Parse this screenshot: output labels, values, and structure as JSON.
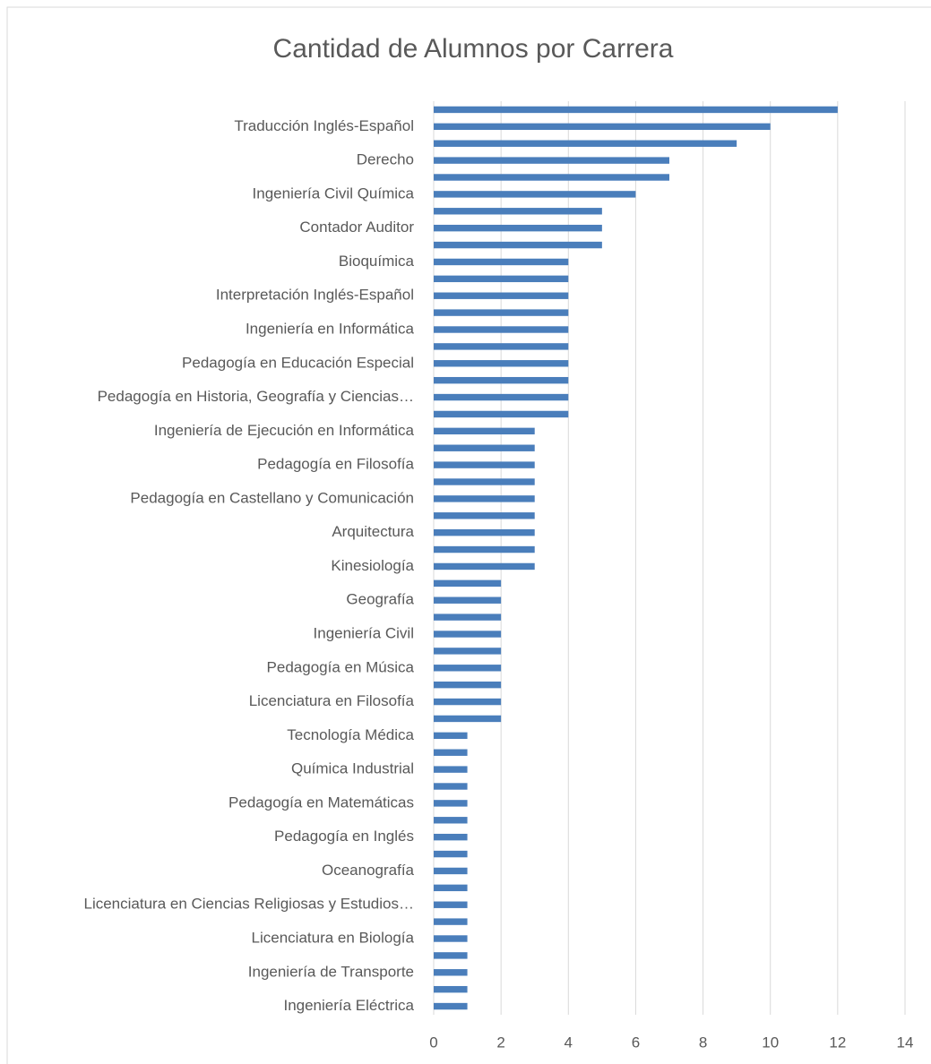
{
  "chart_data": {
    "type": "barh",
    "title": "Cantidad de Alumnos por Carrera",
    "categories": [
      null,
      "Traducción Inglés-Español",
      null,
      "Derecho",
      null,
      "Ingeniería Civil Química",
      null,
      "Contador Auditor",
      null,
      "Bioquímica",
      null,
      "Interpretación Inglés-Español",
      null,
      "Ingeniería en Informática",
      null,
      "Pedagogía en Educación Especial",
      null,
      "Pedagogía en Historia, Geografía y Ciencias…",
      null,
      "Ingeniería de Ejecución en Informática",
      null,
      "Pedagogía en Filosofía",
      null,
      "Pedagogía en Castellano y Comunicación",
      null,
      "Arquitectura",
      null,
      "Kinesiología",
      null,
      "Geografía",
      null,
      "Ingeniería Civil",
      null,
      "Pedagogía en Música",
      null,
      "Licenciatura en Filosofía",
      null,
      "Tecnología Médica",
      null,
      "Química Industrial",
      null,
      "Pedagogía en Matemáticas",
      null,
      "Pedagogía en Inglés",
      null,
      "Oceanografía",
      null,
      "Licenciatura en Ciencias Religiosas y Estudios…",
      null,
      "Licenciatura en Biología",
      null,
      "Ingeniería de Transporte",
      null,
      "Ingeniería Eléctrica"
    ],
    "values": [
      12,
      10,
      9,
      7,
      7,
      6,
      5,
      5,
      5,
      4,
      4,
      4,
      4,
      4,
      4,
      4,
      4,
      4,
      4,
      3,
      3,
      3,
      3,
      3,
      3,
      3,
      3,
      3,
      2,
      2,
      2,
      2,
      2,
      2,
      2,
      2,
      2,
      1,
      1,
      1,
      1,
      1,
      1,
      1,
      1,
      1,
      1,
      1,
      1,
      1,
      1,
      1,
      1,
      1
    ],
    "color": "#4a7ebb",
    "xlim": [
      0,
      14
    ],
    "xticks": [
      0,
      2,
      4,
      6,
      8,
      10,
      12,
      14
    ],
    "grid": true
  }
}
